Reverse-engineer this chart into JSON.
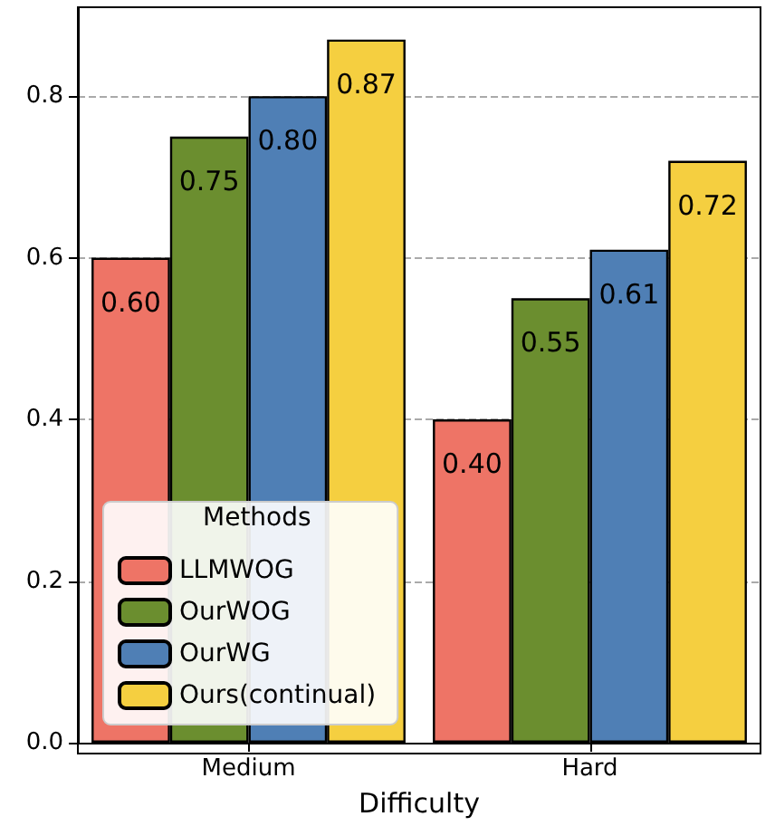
{
  "chart_data": {
    "type": "bar",
    "xlabel": "Difficulty",
    "legend_title": "Methods",
    "categories": [
      "Medium",
      "Hard"
    ],
    "series": [
      {
        "name": "LLMWOG",
        "color": "#ee7466",
        "values": [
          0.6,
          0.4
        ],
        "value_labels": [
          "0.60",
          "0.40"
        ]
      },
      {
        "name": "OurWOG",
        "color": "#6b8e2f",
        "values": [
          0.75,
          0.55
        ],
        "value_labels": [
          "0.75",
          "0.55"
        ]
      },
      {
        "name": "OurWG",
        "color": "#4f7fb5",
        "values": [
          0.8,
          0.61
        ],
        "value_labels": [
          "0.80",
          "0.61"
        ]
      },
      {
        "name": "Ours(continual)",
        "color": "#f5cf40",
        "values": [
          0.87,
          0.72
        ],
        "value_labels": [
          "0.87",
          "0.72"
        ]
      }
    ],
    "ylim": [
      0,
      0.91
    ],
    "yticks": [
      {
        "value": 0,
        "label": "0.0"
      },
      {
        "value": 0.2,
        "label": "0.2"
      },
      {
        "value": 0.4,
        "label": "0.4"
      },
      {
        "value": 0.6,
        "label": "0.6"
      },
      {
        "value": 0.8,
        "label": "0.8"
      }
    ],
    "grid": "y",
    "legend": "bottom left"
  }
}
